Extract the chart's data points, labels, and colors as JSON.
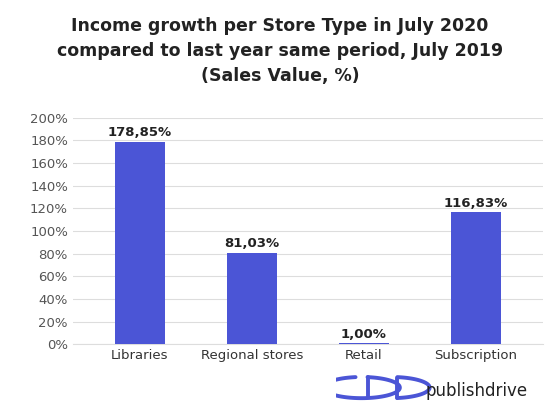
{
  "categories": [
    "Libraries",
    "Regional stores",
    "Retail",
    "Subscription"
  ],
  "values": [
    178.85,
    81.03,
    1.0,
    116.83
  ],
  "labels": [
    "178,85%",
    "81,03%",
    "1,00%",
    "116,83%"
  ],
  "bar_color": "#4B55D6",
  "title_line1": "Income growth per Store Type in July 2020",
  "title_line2": "compared to last year same period, July 2019",
  "title_line3": "(Sales Value, %)",
  "ylim": [
    0,
    200
  ],
  "yticks": [
    0,
    20,
    40,
    60,
    80,
    100,
    120,
    140,
    160,
    180,
    200
  ],
  "ytick_labels": [
    "0%",
    "20%",
    "40%",
    "60%",
    "80%",
    "100%",
    "120%",
    "140%",
    "160%",
    "180%",
    "200%"
  ],
  "title_fontsize": 12.5,
  "label_fontsize": 9.5,
  "tick_fontsize": 9.5,
  "background_color": "#ffffff",
  "grid_color": "#dddddd",
  "bar_width": 0.45,
  "publishdrive_text": "publishdrive",
  "logo_color": "#4B55D6",
  "text_color": "#222222"
}
